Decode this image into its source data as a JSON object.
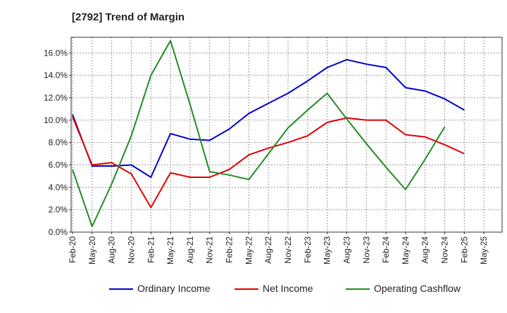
{
  "chart_data": {
    "type": "line",
    "title": "[2792]  Trend of Margin",
    "xlabel": "",
    "ylabel": "",
    "ylim": [
      0,
      17.4
    ],
    "yticks": [
      "0.0%",
      "2.0%",
      "4.0%",
      "6.0%",
      "8.0%",
      "10.0%",
      "12.0%",
      "14.0%",
      "16.0%"
    ],
    "ytick_values": [
      0,
      2,
      4,
      6,
      8,
      10,
      12,
      14,
      16
    ],
    "categories": [
      "Feb-20",
      "May-20",
      "Aug-20",
      "Nov-20",
      "Feb-21",
      "May-21",
      "Aug-21",
      "Nov-21",
      "Feb-22",
      "May-22",
      "Aug-22",
      "Nov-22",
      "Feb-23",
      "May-23",
      "Aug-23",
      "Nov-23",
      "Feb-24",
      "May-24",
      "Aug-24",
      "Nov-24",
      "Feb-25",
      "May-25"
    ],
    "grid": true,
    "legend_position": "bottom",
    "series": [
      {
        "name": "Ordinary Income",
        "color": "#0000cc",
        "values": [
          10.5,
          5.9,
          5.9,
          6.0,
          4.9,
          8.8,
          8.3,
          8.2,
          9.2,
          10.6,
          11.5,
          12.4,
          13.5,
          14.7,
          15.4,
          15.0,
          14.7,
          12.9,
          12.6,
          11.9,
          10.9,
          null
        ]
      },
      {
        "name": "Net Income",
        "color": "#e00000",
        "values": [
          10.3,
          6.0,
          6.2,
          5.2,
          2.2,
          5.3,
          4.9,
          4.9,
          5.6,
          6.9,
          7.5,
          8.0,
          8.6,
          9.8,
          10.2,
          10.0,
          10.0,
          8.7,
          8.5,
          7.8,
          7.0,
          null
        ]
      },
      {
        "name": "Operating Cashflow",
        "color": "#228b22",
        "values": [
          5.6,
          0.5,
          4.3,
          8.6,
          14.0,
          17.1,
          11.4,
          5.4,
          5.1,
          4.7,
          7.0,
          9.3,
          10.9,
          12.4,
          10.1,
          7.9,
          5.8,
          3.8,
          6.5,
          9.4,
          null,
          null
        ]
      }
    ]
  }
}
